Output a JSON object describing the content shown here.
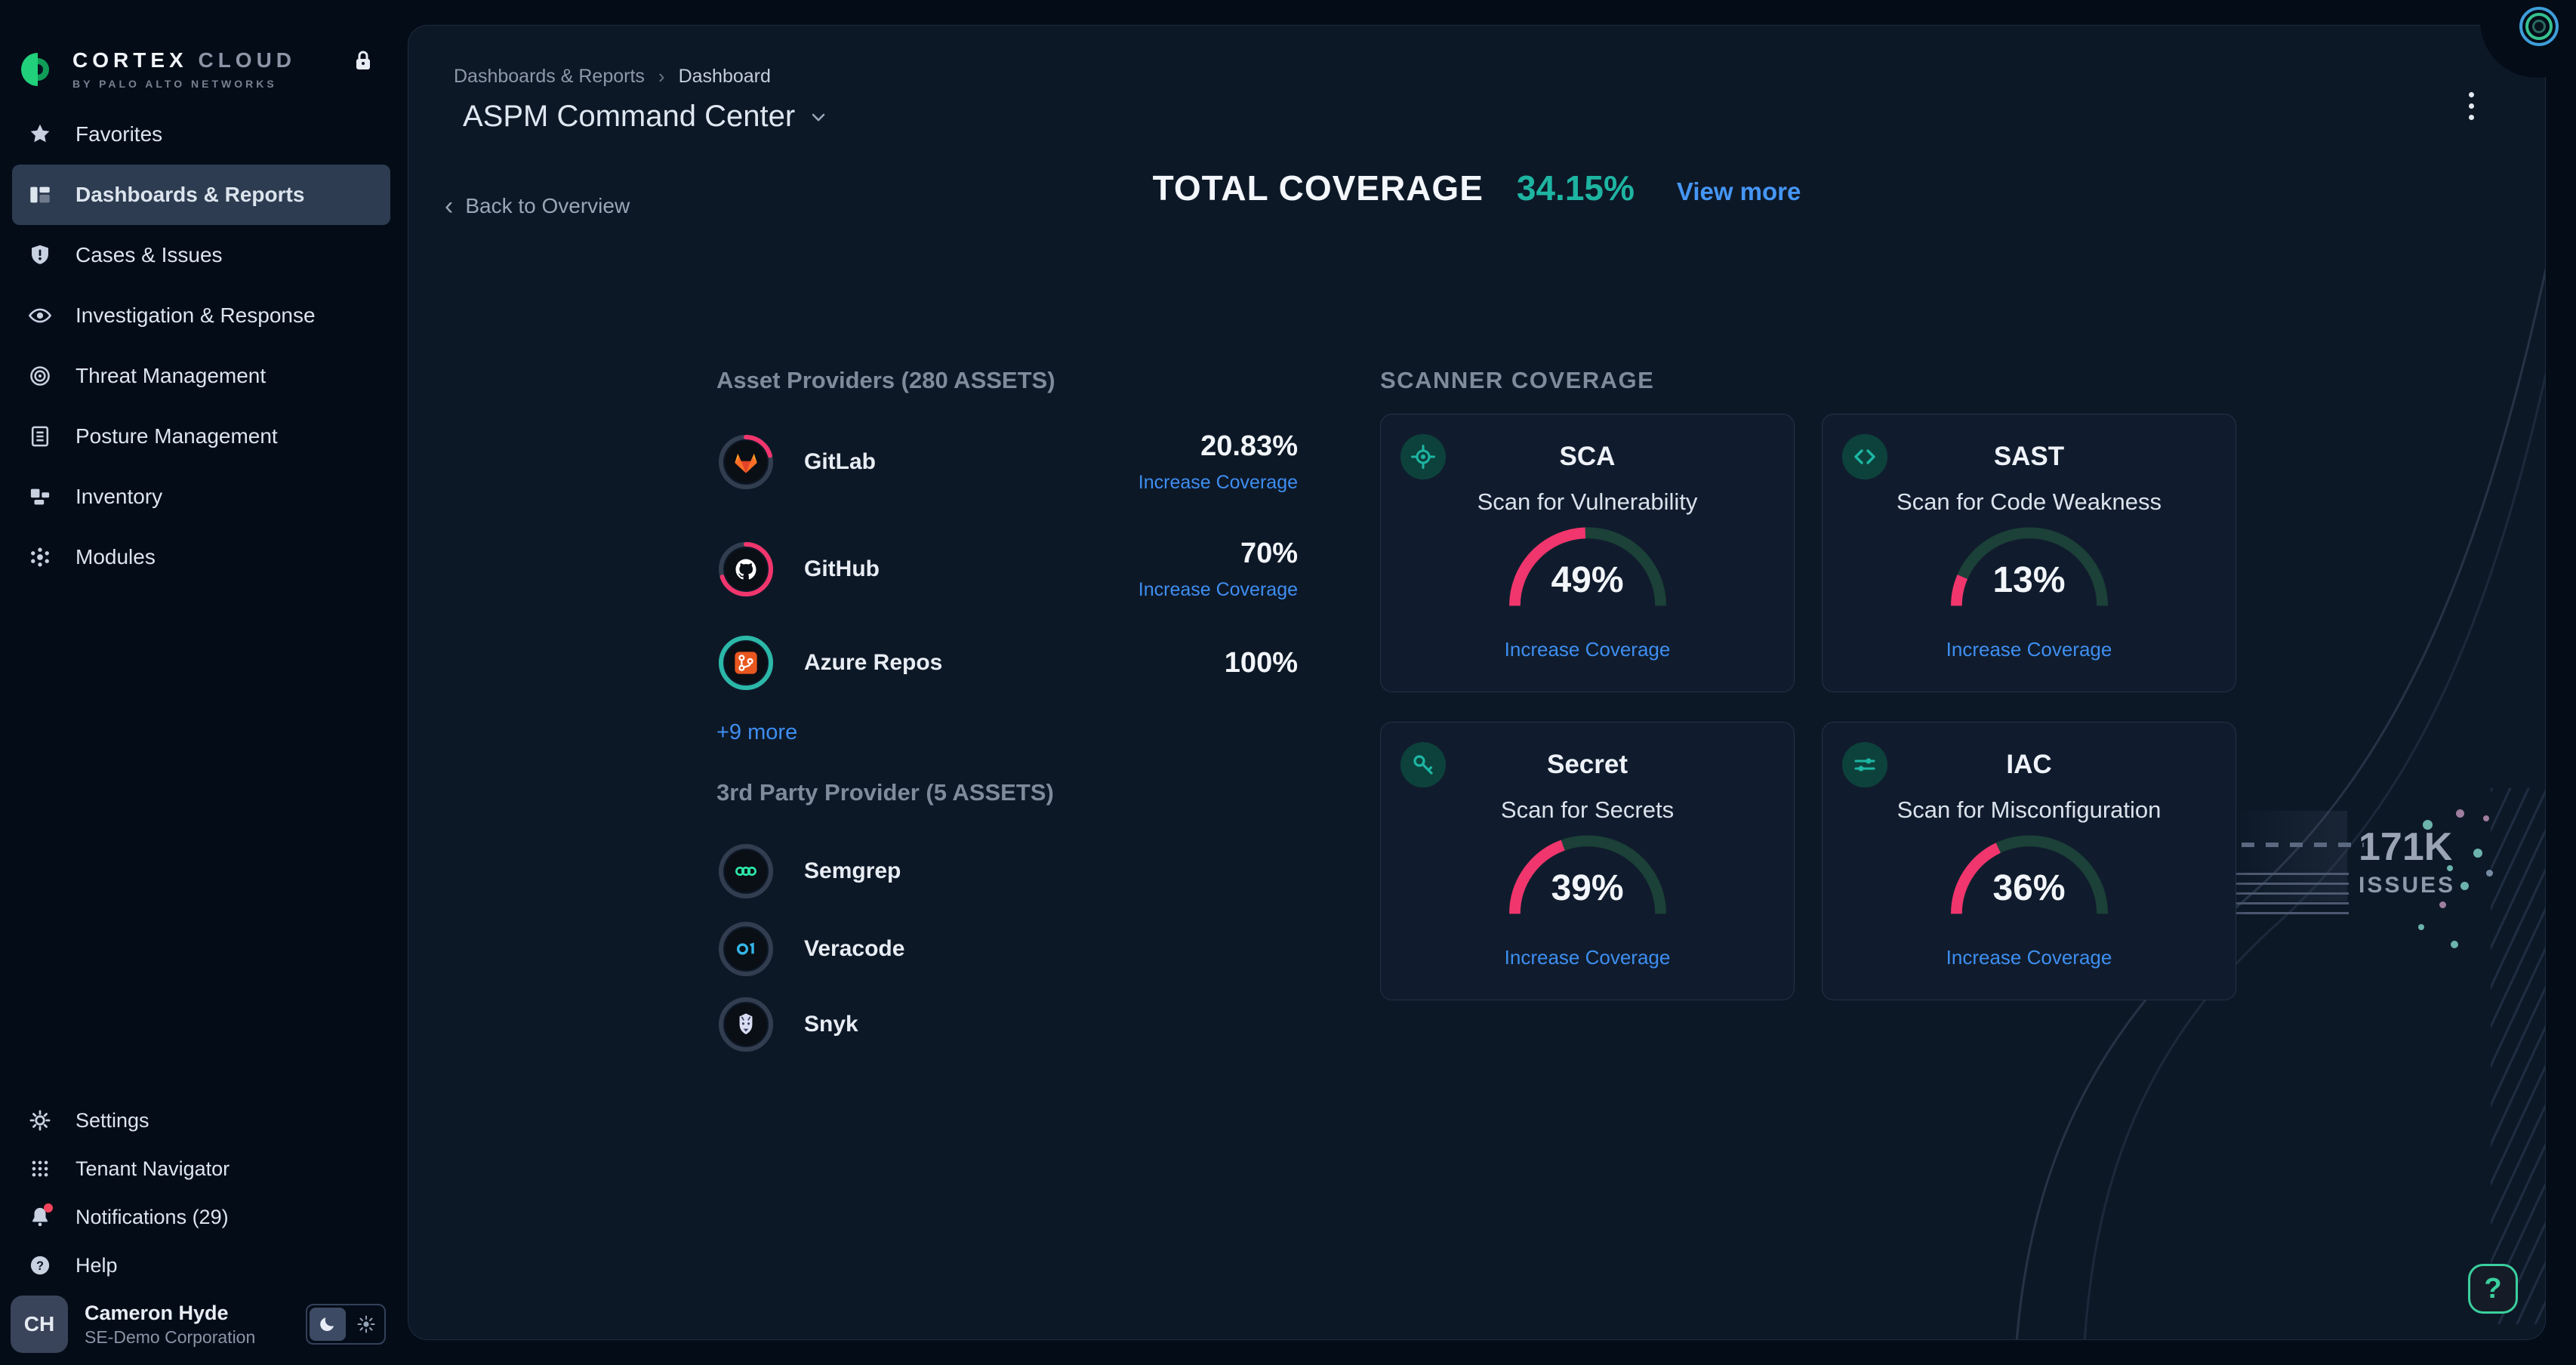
{
  "brand": {
    "line1": "CORTEX CLOUD",
    "line2": "BY PALO ALTO NETWORKS"
  },
  "sidebar": {
    "items": [
      {
        "label": "Favorites"
      },
      {
        "label": "Dashboards & Reports",
        "selected": true
      },
      {
        "label": "Cases & Issues"
      },
      {
        "label": "Investigation & Response"
      },
      {
        "label": "Threat Management"
      },
      {
        "label": "Posture Management"
      },
      {
        "label": "Inventory"
      },
      {
        "label": "Modules"
      }
    ],
    "bottom_items": [
      {
        "label": "Settings"
      },
      {
        "label": "Tenant Navigator"
      },
      {
        "label": "Notifications (29)"
      },
      {
        "label": "Help"
      }
    ],
    "user": {
      "initials": "CH",
      "name": "Cameron Hyde",
      "org": "SE-Demo Corporation"
    }
  },
  "header": {
    "breadcrumb": {
      "parent": "Dashboards & Reports",
      "current": "Dashboard"
    },
    "title": "ASPM Command Center",
    "back_label": "Back to Overview"
  },
  "summary": {
    "label": "TOTAL COVERAGE",
    "value": "34.15%",
    "link": "View more"
  },
  "providers": {
    "heading": "Asset Providers (280 ASSETS)",
    "rows": [
      {
        "name": "GitLab",
        "percent": "20.83%",
        "coverage": 20.83,
        "arc_color": "#F1356D",
        "link": "Increase Coverage"
      },
      {
        "name": "GitHub",
        "percent": "70%",
        "coverage": 70,
        "arc_color": "#F1356D",
        "link": "Increase Coverage"
      },
      {
        "name": "Azure Repos",
        "percent": "100%",
        "coverage": 100,
        "arc_color": "#2BB8A8"
      }
    ],
    "more_link": "+9 more"
  },
  "third_party": {
    "heading": "3rd Party Provider (5 ASSETS)",
    "rows": [
      {
        "name": "Semgrep"
      },
      {
        "name": "Veracode"
      },
      {
        "name": "Snyk"
      }
    ]
  },
  "scanners": {
    "heading": "SCANNER COVERAGE",
    "cards": [
      {
        "title": "SCA",
        "subtitle": "Scan for Vulnerability",
        "percent": 49,
        "percent_label": "49%",
        "link": "Increase Coverage"
      },
      {
        "title": "SAST",
        "subtitle": "Scan for Code Weakness",
        "percent": 13,
        "percent_label": "13%",
        "link": "Increase Coverage"
      },
      {
        "title": "Secret",
        "subtitle": "Scan for Secrets",
        "percent": 39,
        "percent_label": "39%",
        "link": "Increase Coverage"
      },
      {
        "title": "IAC",
        "subtitle": "Scan for Misconfiguration",
        "percent": 36,
        "percent_label": "36%",
        "link": "Increase Coverage"
      }
    ]
  },
  "issues": {
    "value": "171K",
    "label": "ISSUES"
  },
  "help_button": {
    "glyph": "?"
  },
  "colors": {
    "accent_teal": "#1EB4A2",
    "accent_pink": "#F1356D",
    "link_blue": "#3E8EF0",
    "gauge_track": "#1C4138"
  },
  "chart_data": [
    {
      "type": "gauge",
      "title": "SCA Scan for Vulnerability",
      "value": 49,
      "max": 100,
      "unit": "%"
    },
    {
      "type": "gauge",
      "title": "SAST Scan for Code Weakness",
      "value": 13,
      "max": 100,
      "unit": "%"
    },
    {
      "type": "gauge",
      "title": "Secret Scan for Secrets",
      "value": 39,
      "max": 100,
      "unit": "%"
    },
    {
      "type": "gauge",
      "title": "IAC Scan for Misconfiguration",
      "value": 36,
      "max": 100,
      "unit": "%"
    },
    {
      "type": "gauge",
      "title": "GitLab asset coverage",
      "value": 20.83,
      "max": 100,
      "unit": "%"
    },
    {
      "type": "gauge",
      "title": "GitHub asset coverage",
      "value": 70,
      "max": 100,
      "unit": "%"
    },
    {
      "type": "gauge",
      "title": "Azure Repos asset coverage",
      "value": 100,
      "max": 100,
      "unit": "%"
    },
    {
      "type": "gauge",
      "title": "Total coverage",
      "value": 34.15,
      "max": 100,
      "unit": "%"
    }
  ]
}
